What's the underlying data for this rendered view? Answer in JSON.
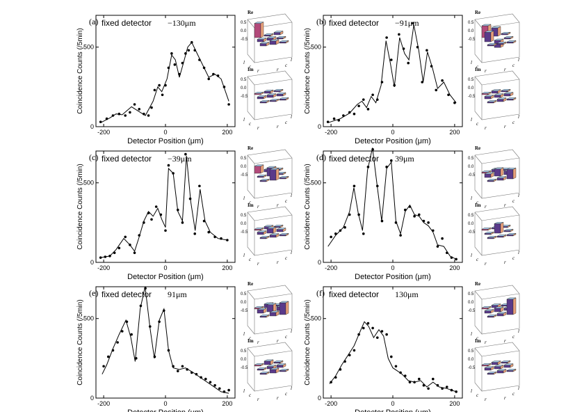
{
  "chart_data": [
    {
      "type": "line",
      "panel_label": "(a)",
      "title_text": "fixed detector",
      "title_value": "−130μm",
      "xlabel": "Detector Position (μm)",
      "ylabel": "Coincidence Counts (/5min)",
      "xlim": [
        -225,
        225
      ],
      "ylim": [
        0,
        700
      ],
      "xticks": [
        "-200",
        "0",
        "200"
      ],
      "yticks": [
        "0",
        "500"
      ],
      "x": [
        -210,
        -190,
        -170,
        -150,
        -130,
        -115,
        -100,
        -85,
        -70,
        -55,
        -45,
        -35,
        -20,
        -10,
        0,
        10,
        20,
        30,
        45,
        55,
        65,
        75,
        85,
        95,
        110,
        125,
        140,
        155,
        170,
        190,
        205
      ],
      "y": [
        30,
        50,
        70,
        80,
        70,
        90,
        140,
        110,
        80,
        70,
        120,
        230,
        260,
        200,
        260,
        370,
        460,
        390,
        330,
        400,
        460,
        480,
        530,
        480,
        420,
        370,
        300,
        330,
        320,
        250,
        140
      ],
      "fit": [
        [
          -210,
          25
        ],
        [
          -180,
          55
        ],
        [
          -160,
          80
        ],
        [
          -140,
          75
        ],
        [
          -110,
          125
        ],
        [
          -90,
          100
        ],
        [
          -65,
          70
        ],
        [
          -40,
          160
        ],
        [
          -25,
          250
        ],
        [
          -12,
          220
        ],
        [
          5,
          300
        ],
        [
          20,
          450
        ],
        [
          32,
          420
        ],
        [
          45,
          310
        ],
        [
          58,
          400
        ],
        [
          72,
          500
        ],
        [
          85,
          530
        ],
        [
          100,
          470
        ],
        [
          120,
          390
        ],
        [
          140,
          310
        ],
        [
          160,
          330
        ],
        [
          180,
          300
        ],
        [
          205,
          160
        ]
      ],
      "re_label": "Re",
      "im_label": "Im",
      "re_ticks": [
        "0.5",
        "0.0",
        "-0.5"
      ],
      "im_ticks": [
        "0.5",
        "0.0",
        "-0.5"
      ],
      "re_bars": [
        0.6,
        0.05,
        0.1,
        0.1,
        0.1,
        0.05,
        0.1,
        0.15,
        0.05
      ],
      "im_bars": [
        0.05,
        0.08,
        0.05,
        0.08,
        0.1,
        0.08,
        0.05,
        0.05,
        0.05
      ],
      "axis_letters": [
        "l",
        "c",
        "r",
        "l",
        "c",
        "r"
      ]
    },
    {
      "type": "line",
      "panel_label": "(b)",
      "title_text": "fixed detector",
      "title_value": "−91μm",
      "xlabel": "Detector Position (μm)",
      "ylabel": "Coincidence Counts (/5min)",
      "xlim": [
        -225,
        225
      ],
      "ylim": [
        0,
        700
      ],
      "xticks": [
        "-200",
        "0",
        "200"
      ],
      "yticks": [
        "0",
        "500"
      ],
      "x": [
        -210,
        -190,
        -175,
        -160,
        -140,
        -125,
        -110,
        -95,
        -80,
        -65,
        -50,
        -35,
        -20,
        -5,
        5,
        20,
        35,
        50,
        65,
        80,
        95,
        110,
        125,
        140,
        160,
        180,
        200
      ],
      "y": [
        30,
        50,
        40,
        70,
        90,
        80,
        130,
        170,
        110,
        200,
        170,
        280,
        560,
        420,
        260,
        580,
        490,
        400,
        650,
        500,
        280,
        480,
        380,
        230,
        290,
        200,
        150
      ],
      "fit": [
        [
          -210,
          25
        ],
        [
          -170,
          50
        ],
        [
          -140,
          85
        ],
        [
          -115,
          140
        ],
        [
          -100,
          160
        ],
        [
          -85,
          120
        ],
        [
          -70,
          190
        ],
        [
          -55,
          150
        ],
        [
          -38,
          260
        ],
        [
          -22,
          540
        ],
        [
          -8,
          400
        ],
        [
          5,
          250
        ],
        [
          22,
          560
        ],
        [
          38,
          460
        ],
        [
          52,
          420
        ],
        [
          68,
          640
        ],
        [
          84,
          480
        ],
        [
          98,
          280
        ],
        [
          112,
          470
        ],
        [
          128,
          370
        ],
        [
          145,
          240
        ],
        [
          165,
          280
        ],
        [
          185,
          200
        ],
        [
          205,
          150
        ]
      ],
      "re_label": "Re",
      "im_label": "Im",
      "re_ticks": [
        "0.5",
        "0.0",
        "-0.5"
      ],
      "im_ticks": [
        "0.5",
        "0.0",
        "-0.5"
      ],
      "re_bars": [
        0.5,
        0.35,
        0.05,
        0.4,
        -0.3,
        0.05,
        0.05,
        0.05,
        0.05
      ],
      "im_bars": [
        0.05,
        0.1,
        0.05,
        0.1,
        0.1,
        0.1,
        0.05,
        0.1,
        0.05
      ],
      "axis_letters": [
        "l",
        "c",
        "r",
        "l",
        "c",
        "r"
      ]
    },
    {
      "type": "line",
      "panel_label": "(c)",
      "title_text": "fixed detector",
      "title_value": "−39μm",
      "xlabel": "Detector Position (μm)",
      "ylabel": "Coincidence Counts (/5min)",
      "xlim": [
        -225,
        225
      ],
      "ylim": [
        0,
        700
      ],
      "xticks": [
        "-200",
        "0",
        "200"
      ],
      "yticks": [
        "0",
        "500"
      ],
      "x": [
        -210,
        -195,
        -180,
        -165,
        -150,
        -130,
        -115,
        -100,
        -85,
        -70,
        -55,
        -45,
        -30,
        -15,
        0,
        10,
        25,
        40,
        55,
        65,
        80,
        95,
        110,
        125,
        140,
        160,
        180,
        200
      ],
      "y": [
        30,
        35,
        40,
        60,
        90,
        160,
        110,
        60,
        170,
        250,
        310,
        270,
        350,
        300,
        200,
        610,
        560,
        330,
        250,
        680,
        400,
        180,
        480,
        260,
        190,
        160,
        150,
        140
      ],
      "fit": [
        [
          -210,
          30
        ],
        [
          -180,
          40
        ],
        [
          -160,
          80
        ],
        [
          -135,
          150
        ],
        [
          -115,
          110
        ],
        [
          -100,
          70
        ],
        [
          -85,
          160
        ],
        [
          -70,
          260
        ],
        [
          -55,
          320
        ],
        [
          -40,
          290
        ],
        [
          -25,
          340
        ],
        [
          -12,
          270
        ],
        [
          0,
          220
        ],
        [
          10,
          590
        ],
        [
          25,
          560
        ],
        [
          40,
          320
        ],
        [
          55,
          260
        ],
        [
          68,
          670
        ],
        [
          82,
          380
        ],
        [
          96,
          200
        ],
        [
          112,
          460
        ],
        [
          128,
          260
        ],
        [
          145,
          190
        ],
        [
          170,
          150
        ],
        [
          200,
          140
        ]
      ],
      "re_label": "Re",
      "im_label": "Im",
      "re_ticks": [
        "0.5",
        "0.0",
        "-0.5"
      ],
      "im_ticks": [
        "0.5",
        "0.0",
        "-0.5"
      ],
      "re_bars": [
        0.3,
        0.1,
        0.05,
        0.05,
        0.35,
        0.05,
        0.05,
        0.45,
        0.05
      ],
      "im_bars": [
        0.05,
        0.1,
        0.05,
        0.1,
        0.2,
        0.1,
        0.05,
        0.1,
        0.05
      ],
      "axis_letters": [
        "l",
        "c",
        "r",
        "l",
        "c",
        "r"
      ]
    },
    {
      "type": "line",
      "panel_label": "(d)",
      "title_text": "fixed detector",
      "title_value": "39μm",
      "xlabel": "Detector Position (μm)",
      "ylabel": "Coincidence Counts (/5min)",
      "xlim": [
        -225,
        225
      ],
      "ylim": [
        0,
        700
      ],
      "xticks": [
        "-200",
        "0",
        "200"
      ],
      "yticks": [
        "0",
        "500"
      ],
      "x": [
        -200,
        -185,
        -170,
        -155,
        -140,
        -125,
        -110,
        -95,
        -80,
        -65,
        -50,
        -35,
        -20,
        -5,
        10,
        25,
        40,
        55,
        70,
        85,
        100,
        115,
        130,
        145,
        160,
        175,
        190,
        205
      ],
      "y": [
        160,
        180,
        200,
        220,
        300,
        480,
        300,
        180,
        600,
        710,
        480,
        260,
        600,
        640,
        250,
        170,
        330,
        350,
        290,
        300,
        260,
        250,
        200,
        100,
        150,
        60,
        30,
        20
      ],
      "fit": [
        [
          -210,
          100
        ],
        [
          -185,
          170
        ],
        [
          -160,
          220
        ],
        [
          -140,
          320
        ],
        [
          -126,
          470
        ],
        [
          -112,
          310
        ],
        [
          -98,
          200
        ],
        [
          -82,
          580
        ],
        [
          -66,
          720
        ],
        [
          -50,
          470
        ],
        [
          -36,
          260
        ],
        [
          -20,
          590
        ],
        [
          -5,
          630
        ],
        [
          10,
          260
        ],
        [
          25,
          180
        ],
        [
          40,
          320
        ],
        [
          55,
          360
        ],
        [
          70,
          300
        ],
        [
          85,
          290
        ],
        [
          100,
          250
        ],
        [
          115,
          230
        ],
        [
          130,
          190
        ],
        [
          145,
          110
        ],
        [
          165,
          100
        ],
        [
          185,
          40
        ],
        [
          205,
          20
        ]
      ],
      "re_label": "Re",
      "im_label": "Im",
      "re_ticks": [
        "0.5",
        "0.0",
        "-0.5"
      ],
      "im_ticks": [
        "0.5",
        "0.0",
        "-0.5"
      ],
      "re_bars": [
        0.05,
        0.1,
        0.05,
        0.15,
        0.3,
        0.15,
        0.05,
        0.1,
        0.4
      ],
      "im_bars": [
        0.05,
        0.05,
        0.05,
        0.05,
        0.4,
        0.05,
        0.05,
        0.05,
        0.05
      ],
      "axis_letters": [
        "l",
        "c",
        "r",
        "l",
        "c",
        "r"
      ]
    },
    {
      "type": "line",
      "panel_label": "(e)",
      "title_text": "fixed detector",
      "title_value": "91μm",
      "xlabel": "Detector Position (μm)",
      "ylabel": "Coincidence Counts (/5min)",
      "xlim": [
        -225,
        225
      ],
      "ylim": [
        0,
        700
      ],
      "xticks": [
        "-200",
        "0",
        "200"
      ],
      "yticks": [
        "0",
        "500"
      ],
      "x": [
        -200,
        -185,
        -170,
        -155,
        -140,
        -125,
        -110,
        -95,
        -80,
        -65,
        -50,
        -35,
        -20,
        -5,
        10,
        25,
        40,
        55,
        70,
        85,
        100,
        115,
        130,
        145,
        160,
        175,
        190,
        205
      ],
      "y": [
        200,
        260,
        300,
        350,
        420,
        480,
        400,
        250,
        580,
        690,
        450,
        260,
        480,
        550,
        300,
        200,
        170,
        200,
        180,
        160,
        150,
        130,
        120,
        100,
        80,
        60,
        40,
        50
      ],
      "fit": [
        [
          -205,
          150
        ],
        [
          -190,
          210
        ],
        [
          -170,
          310
        ],
        [
          -150,
          400
        ],
        [
          -128,
          490
        ],
        [
          -112,
          380
        ],
        [
          -98,
          230
        ],
        [
          -82,
          560
        ],
        [
          -66,
          700
        ],
        [
          -50,
          440
        ],
        [
          -36,
          250
        ],
        [
          -20,
          490
        ],
        [
          -5,
          560
        ],
        [
          10,
          300
        ],
        [
          25,
          190
        ],
        [
          45,
          180
        ],
        [
          65,
          190
        ],
        [
          90,
          160
        ],
        [
          120,
          120
        ],
        [
          150,
          80
        ],
        [
          180,
          40
        ],
        [
          205,
          30
        ]
      ],
      "re_label": "Re",
      "im_label": "Im",
      "re_ticks": [
        "0.5",
        "0.0",
        "-0.5"
      ],
      "im_ticks": [
        "0.5",
        "0.0",
        "-0.5"
      ],
      "re_bars": [
        0.05,
        0.15,
        0.05,
        0.15,
        0.3,
        0.15,
        0.05,
        0.15,
        0.5
      ],
      "im_bars": [
        0.05,
        0.15,
        0.05,
        0.05,
        0.1,
        0.1,
        0.05,
        0.15,
        0.05
      ],
      "axis_letters": [
        "l",
        "c",
        "r",
        "l",
        "c",
        "r"
      ]
    },
    {
      "type": "line",
      "panel_label": "(f)",
      "title_text": "fixed detector",
      "title_value": "130μm",
      "xlabel": "Detector Position (μm)",
      "ylabel": "Coincidence Counts (/5min)",
      "xlim": [
        -225,
        225
      ],
      "ylim": [
        0,
        700
      ],
      "xticks": [
        "-200",
        "0",
        "200"
      ],
      "yticks": [
        "0",
        "500"
      ],
      "x": [
        -200,
        -185,
        -170,
        -155,
        -140,
        -125,
        -110,
        -95,
        -80,
        -65,
        -50,
        -35,
        -20,
        -5,
        10,
        25,
        40,
        55,
        70,
        85,
        100,
        115,
        130,
        145,
        160,
        175,
        190,
        205
      ],
      "y": [
        100,
        130,
        180,
        230,
        270,
        300,
        400,
        440,
        470,
        440,
        380,
        420,
        400,
        260,
        200,
        160,
        140,
        100,
        100,
        120,
        80,
        60,
        120,
        80,
        60,
        70,
        50,
        40
      ],
      "fit": [
        [
          -205,
          90
        ],
        [
          -185,
          140
        ],
        [
          -165,
          210
        ],
        [
          -145,
          270
        ],
        [
          -125,
          330
        ],
        [
          -110,
          400
        ],
        [
          -92,
          480
        ],
        [
          -78,
          450
        ],
        [
          -62,
          380
        ],
        [
          -45,
          430
        ],
        [
          -30,
          390
        ],
        [
          -15,
          250
        ],
        [
          0,
          190
        ],
        [
          15,
          170
        ],
        [
          30,
          150
        ],
        [
          50,
          110
        ],
        [
          70,
          100
        ],
        [
          90,
          110
        ],
        [
          110,
          70
        ],
        [
          130,
          100
        ],
        [
          150,
          70
        ],
        [
          175,
          60
        ],
        [
          205,
          40
        ]
      ],
      "re_label": "Re",
      "im_label": "Im",
      "re_ticks": [
        "0.5",
        "0.0",
        "-0.5"
      ],
      "im_ticks": [
        "0.5",
        "0.0",
        "-0.5"
      ],
      "re_bars": [
        0.05,
        0.1,
        0.05,
        0.1,
        0.15,
        0.1,
        0.05,
        0.1,
        0.65
      ],
      "im_bars": [
        0.05,
        0.1,
        0.05,
        0.1,
        0.1,
        0.1,
        0.05,
        0.1,
        0.05
      ],
      "axis_letters": [
        "l",
        "c",
        "r",
        "l",
        "c",
        "r"
      ]
    }
  ],
  "colors": {
    "bar_top": "#a9d0f0",
    "bar_side": "#b24a7a",
    "bar_side2": "#e8a07a",
    "bar_dark": "#5a3a8a",
    "line": "#000000"
  }
}
